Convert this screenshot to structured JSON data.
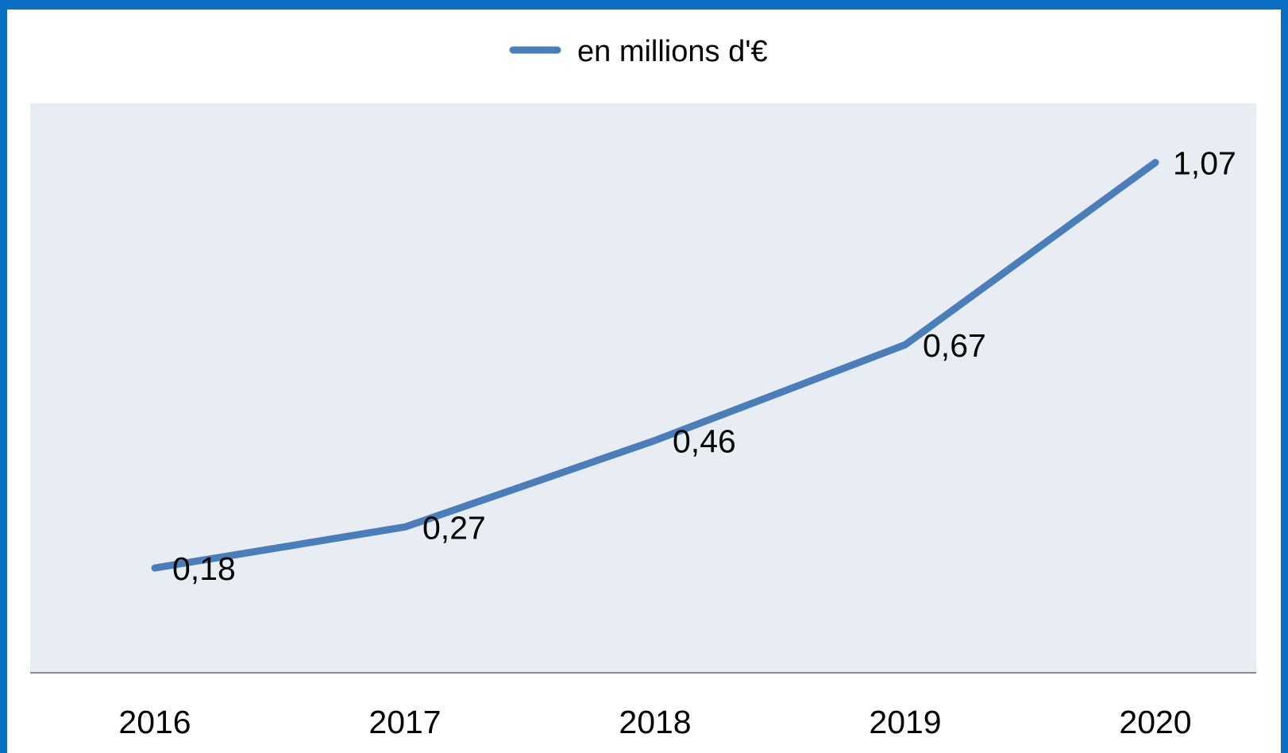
{
  "chart_data": {
    "type": "line",
    "categories": [
      "2016",
      "2017",
      "2018",
      "2019",
      "2020"
    ],
    "series": [
      {
        "name": "en millions d'€",
        "values": [
          0.18,
          0.27,
          0.46,
          0.67,
          1.07
        ]
      }
    ],
    "data_labels": [
      "0,18",
      "0,27",
      "0,46",
      "0,67",
      "1,07"
    ],
    "ylim": [
      -0.05,
      1.2
    ],
    "grid": false,
    "legend_position": "top-center",
    "colors": {
      "series": "#4a7ebb",
      "plot_background": "#e8edf4",
      "frame": "#0a6fc2",
      "axis": "#888888"
    }
  }
}
